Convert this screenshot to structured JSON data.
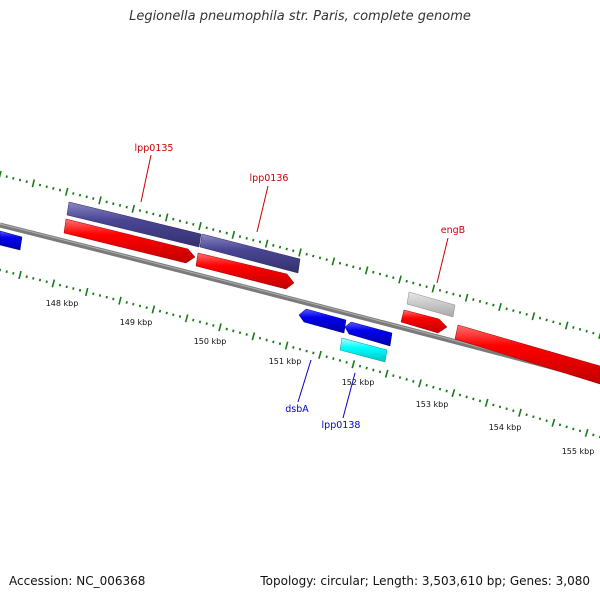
{
  "title": "Legionella pneumophila str. Paris, complete genome",
  "footer": {
    "accession": "Accession: NC_006368",
    "summary": "Topology: circular; Length: 3,503,610 bp; Genes: 3,080"
  },
  "colors": {
    "background": "#ffffff",
    "backbone": "#777777",
    "tick": "#1a7a1a",
    "red_cds": "#ff0000",
    "blue_cds": "#0000ee",
    "purple_feature": "#4a4694",
    "gray_feature": "#bdbdbd",
    "cyan_feature": "#00ffff",
    "forward_label": "#cc0000",
    "reverse_label": "#0000cc"
  },
  "ticks": [
    "148 kbp",
    "149 kbp",
    "150 kbp",
    "151 kbp",
    "152 kbp",
    "153 kbp",
    "154 kbp",
    "155 kbp"
  ],
  "features": [
    {
      "id": "ltrack-blue",
      "kind": "blue",
      "strand": "reverse"
    },
    {
      "id": "lpp0135-purple",
      "kind": "purple",
      "strand": "forward"
    },
    {
      "id": "lpp0135-red",
      "kind": "red",
      "strand": "forward"
    },
    {
      "id": "lpp0136-purple",
      "kind": "purple",
      "strand": "forward"
    },
    {
      "id": "lpp0136-red",
      "kind": "red",
      "strand": "forward"
    },
    {
      "id": "engB-gray",
      "kind": "gray",
      "strand": "forward"
    },
    {
      "id": "engB-red",
      "kind": "red",
      "strand": "forward"
    },
    {
      "id": "right-red",
      "kind": "red",
      "strand": "forward"
    },
    {
      "id": "dsbA-blue",
      "kind": "blue",
      "strand": "reverse"
    },
    {
      "id": "lpp0138-blue",
      "kind": "blue",
      "strand": "reverse"
    },
    {
      "id": "lpp0138-cyan",
      "kind": "cyan",
      "strand": "reverse"
    }
  ],
  "labels": [
    {
      "text": "lpp0135",
      "strand": "forward"
    },
    {
      "text": "lpp0136",
      "strand": "forward"
    },
    {
      "text": "engB",
      "strand": "forward"
    },
    {
      "text": "dsbA",
      "strand": "reverse"
    },
    {
      "text": "lpp0138",
      "strand": "reverse"
    }
  ]
}
